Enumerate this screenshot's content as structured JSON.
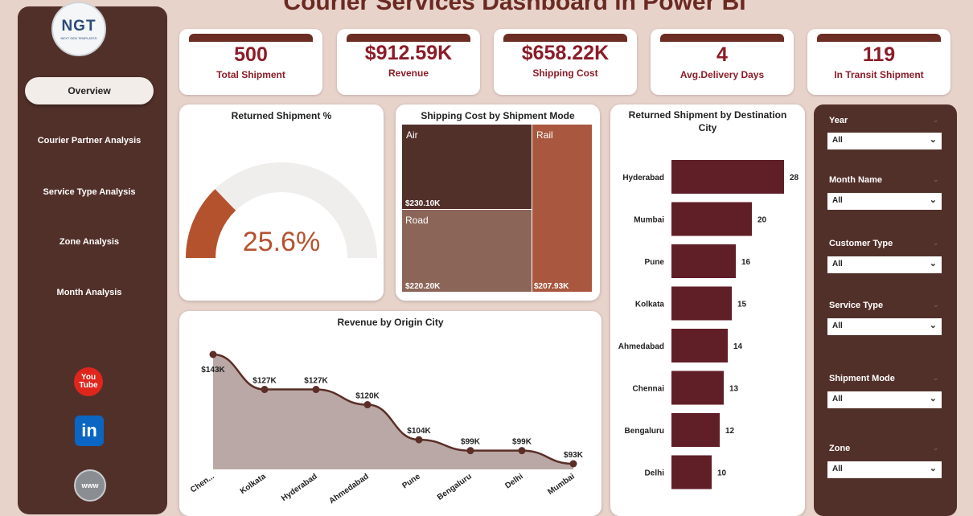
{
  "title": "Courier Services Dashboard in Power BI",
  "logo": {
    "main": "NGT",
    "sub": "NEXT GEN TEMPLATES"
  },
  "nav": {
    "active": "Overview",
    "items": [
      "Courier Partner Analysis",
      "Service Type Analysis",
      "Zone Analysis",
      "Month Analysis"
    ]
  },
  "social": {
    "youtube_line1": "You",
    "youtube_line2": "Tube",
    "linkedin": "in",
    "web": "www"
  },
  "kpis": [
    {
      "value": "500",
      "label": "Total Shipment"
    },
    {
      "value": "$912.59K",
      "label": "Revenue"
    },
    {
      "value": "$658.22K",
      "label": "Shipping Cost"
    },
    {
      "value": "4",
      "label": "Avg.Delivery Days"
    },
    {
      "value": "119",
      "label": "In Transit Shipment"
    }
  ],
  "gauge": {
    "title": "Returned Shipment %",
    "value_label": "25.6%",
    "fraction": 0.256,
    "fill_color": "#b5522e",
    "track_color": "#f0eeed"
  },
  "treemap": {
    "title": "Shipping Cost by Shipment Mode",
    "tiles": [
      {
        "name": "Air",
        "value_label": "$230.10K",
        "value": 230.1,
        "color": "#51302a"
      },
      {
        "name": "Road",
        "value_label": "$220.20K",
        "value": 220.2,
        "color": "#8c6559"
      },
      {
        "name": "Rail",
        "value_label": "$207.93K",
        "value": 207.93,
        "color": "#a9573e"
      }
    ]
  },
  "destination": {
    "title_line1": "Returned Shipment by Destination",
    "title_line2": "City",
    "color": "#601e26"
  },
  "origin": {
    "title": "Revenue by Origin City",
    "line_color": "#5b2e27",
    "area_color": "#b9a8a5"
  },
  "filters": [
    {
      "label": "Year",
      "value": "All"
    },
    {
      "label": "Month Name",
      "value": "All"
    },
    {
      "label": "Customer Type",
      "value": "All"
    },
    {
      "label": "Service Type",
      "value": "All"
    },
    {
      "label": "Shipment Mode",
      "value": "All"
    },
    {
      "label": "Zone",
      "value": "All"
    }
  ],
  "chart_data": [
    {
      "type": "bar",
      "orientation": "horizontal",
      "title": "Returned Shipment by Destination City",
      "categories": [
        "Hyderabad",
        "Mumbai",
        "Pune",
        "Kolkata",
        "Ahmedabad",
        "Chennai",
        "Bengaluru",
        "Delhi"
      ],
      "values": [
        28,
        20,
        16,
        15,
        14,
        13,
        12,
        10
      ],
      "xlim": [
        0,
        30
      ]
    },
    {
      "type": "area",
      "title": "Revenue by Origin City",
      "categories": [
        "Chen...",
        "Kolkata",
        "Hyderabad",
        "Ahmedabad",
        "Pune",
        "Bengaluru",
        "Delhi",
        "Mumbai"
      ],
      "values": [
        143,
        127,
        127,
        120,
        104,
        99,
        99,
        93
      ],
      "labels": [
        "$143K",
        "$127K",
        "$127K",
        "$120K",
        "$104K",
        "$99K",
        "$99K",
        "$93K"
      ],
      "ylim": [
        60,
        150
      ]
    }
  ]
}
